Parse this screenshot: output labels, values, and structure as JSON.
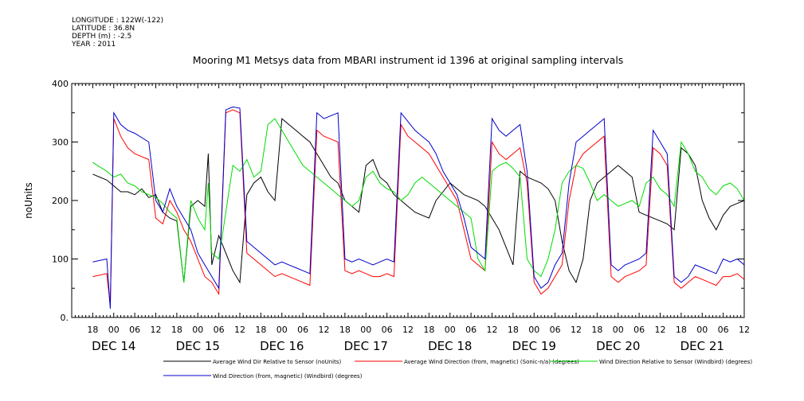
{
  "header": {
    "lines": [
      "LONGITUDE : 122W(-122)",
      "LATITUDE : 36.8N",
      "DEPTH (m) : -2.5",
      "YEAR : 2011"
    ]
  },
  "chart_data": {
    "type": "line",
    "title": "Mooring M1 Metsys data from MBARI instrument id 1396 at original sampling intervals",
    "ylabel": "noUnits",
    "xlabel": "",
    "ylim": [
      0,
      400
    ],
    "yticks": [
      0,
      100,
      200,
      300,
      400
    ],
    "ytick_labels": [
      "0.",
      "100",
      "200",
      "300",
      "400"
    ],
    "xlim": [
      "DEC 14 12:00",
      "DEC 22 00:00"
    ],
    "hour_tick_labels": [
      "18",
      "00",
      "06",
      "12",
      "18",
      "00",
      "06",
      "12",
      "18",
      "00",
      "06",
      "12",
      "18",
      "00",
      "06",
      "12",
      "18",
      "00",
      "06",
      "12",
      "18",
      "00",
      "06",
      "12",
      "18",
      "00",
      "06",
      "12",
      "18",
      "00",
      "06",
      "12"
    ],
    "day_labels": [
      "DEC 14",
      "DEC 15",
      "DEC 16",
      "DEC 17",
      "DEC 18",
      "DEC 19",
      "DEC 20",
      "DEC 21"
    ],
    "grid": false,
    "legend_placement": "bottom",
    "series": [
      {
        "name": "Average Wind Dir Relative to Sensor (noUnits)",
        "color": "#000000",
        "x_hours": [
          0,
          4,
          6,
          8,
          10,
          12,
          14,
          16,
          18,
          20,
          22,
          24,
          26,
          28,
          30,
          32,
          33,
          34,
          36,
          38,
          40,
          42,
          44,
          46,
          48,
          50,
          52,
          54,
          56,
          58,
          60,
          62,
          64,
          66,
          68,
          70,
          72,
          74,
          76,
          78,
          80,
          82,
          84,
          86,
          88,
          90,
          92,
          94,
          96,
          98,
          100,
          102,
          104,
          106,
          108,
          110,
          112,
          114,
          116,
          118,
          120,
          122,
          124,
          126,
          128,
          130,
          132,
          134,
          136,
          138,
          140,
          142,
          144,
          146,
          148,
          150,
          152,
          154,
          156,
          158,
          160,
          162,
          164,
          166,
          168,
          170,
          172,
          174,
          176,
          178,
          180,
          182,
          184,
          186,
          188
        ],
        "values": [
          245,
          235,
          225,
          215,
          215,
          210,
          220,
          205,
          210,
          180,
          170,
          165,
          60,
          190,
          200,
          190,
          280,
          90,
          140,
          110,
          80,
          60,
          210,
          230,
          240,
          215,
          200,
          340,
          330,
          320,
          310,
          300,
          280,
          260,
          240,
          230,
          200,
          190,
          180,
          260,
          270,
          240,
          230,
          210,
          200,
          190,
          180,
          175,
          170,
          200,
          215,
          230,
          220,
          210,
          205,
          200,
          190,
          170,
          150,
          120,
          90,
          250,
          240,
          235,
          230,
          220,
          200,
          130,
          80,
          60,
          100,
          200,
          230,
          240,
          250,
          260,
          250,
          240,
          180,
          175,
          170,
          165,
          160,
          150,
          290,
          280,
          260,
          200,
          170,
          150,
          175,
          190,
          195,
          200,
          185
        ]
      },
      {
        "name": "Average Wind Direction (from, magnetic) (Sonic-n/a) (degrees)",
        "color": "#ff0000",
        "x_hours": [
          0,
          4,
          5,
          6,
          8,
          10,
          12,
          16,
          18,
          20,
          22,
          24,
          26,
          28,
          30,
          32,
          34,
          36,
          38,
          40,
          42,
          44,
          46,
          48,
          50,
          52,
          54,
          56,
          58,
          60,
          62,
          64,
          66,
          68,
          70,
          72,
          74,
          76,
          78,
          80,
          82,
          84,
          86,
          88,
          90,
          92,
          94,
          96,
          98,
          100,
          102,
          104,
          106,
          108,
          110,
          112,
          114,
          116,
          118,
          120,
          122,
          124,
          126,
          128,
          130,
          132,
          134,
          136,
          138,
          140,
          142,
          144,
          146,
          148,
          150,
          152,
          154,
          156,
          158,
          160,
          162,
          164,
          166,
          168,
          170,
          172,
          174,
          176,
          178,
          180,
          182,
          184,
          186,
          188
        ],
        "values": [
          70,
          75,
          20,
          340,
          310,
          290,
          280,
          270,
          170,
          160,
          200,
          180,
          150,
          130,
          100,
          70,
          60,
          40,
          350,
          355,
          350,
          110,
          100,
          90,
          80,
          70,
          75,
          70,
          65,
          60,
          55,
          320,
          310,
          305,
          300,
          80,
          75,
          80,
          75,
          70,
          70,
          75,
          70,
          330,
          310,
          300,
          290,
          280,
          260,
          240,
          220,
          200,
          150,
          100,
          90,
          80,
          300,
          280,
          270,
          280,
          290,
          230,
          60,
          40,
          50,
          70,
          90,
          200,
          260,
          280,
          290,
          300,
          310,
          70,
          60,
          70,
          75,
          80,
          90,
          290,
          280,
          260,
          60,
          50,
          60,
          70,
          65,
          60,
          55,
          70,
          70,
          75,
          65,
          70
        ]
      },
      {
        "name": "Wind Direction Relative to Sensor (Windbird) (degrees)",
        "color": "#00dd00",
        "x_hours": [
          0,
          4,
          6,
          8,
          10,
          12,
          14,
          16,
          18,
          20,
          22,
          24,
          26,
          28,
          30,
          32,
          33,
          34,
          36,
          38,
          40,
          42,
          44,
          46,
          48,
          50,
          52,
          54,
          56,
          58,
          60,
          62,
          64,
          66,
          68,
          70,
          72,
          74,
          76,
          78,
          80,
          82,
          84,
          86,
          88,
          90,
          92,
          94,
          96,
          98,
          100,
          102,
          104,
          106,
          108,
          110,
          112,
          114,
          116,
          118,
          120,
          122,
          124,
          126,
          128,
          130,
          132,
          134,
          136,
          138,
          140,
          142,
          144,
          146,
          148,
          150,
          152,
          154,
          156,
          158,
          160,
          162,
          164,
          166,
          168,
          170,
          172,
          174,
          176,
          178,
          180,
          182,
          184,
          186,
          188
        ],
        "values": [
          265,
          250,
          240,
          245,
          230,
          225,
          215,
          210,
          205,
          195,
          180,
          170,
          60,
          200,
          170,
          150,
          230,
          110,
          100,
          180,
          260,
          250,
          270,
          240,
          250,
          330,
          340,
          320,
          300,
          280,
          260,
          250,
          240,
          230,
          220,
          210,
          200,
          190,
          200,
          240,
          250,
          230,
          220,
          215,
          200,
          210,
          230,
          240,
          230,
          220,
          210,
          200,
          190,
          180,
          170,
          100,
          80,
          250,
          260,
          265,
          255,
          240,
          100,
          80,
          70,
          100,
          150,
          230,
          250,
          260,
          255,
          230,
          200,
          210,
          200,
          190,
          195,
          200,
          190,
          230,
          240,
          220,
          210,
          190,
          300,
          280,
          250,
          240,
          220,
          210,
          225,
          230,
          220,
          200,
          190
        ]
      },
      {
        "name": "Wind Direction (from, magnetic) (Windbird) (degrees)",
        "color": "#0000cc",
        "x_hours": [
          0,
          4,
          5,
          6,
          8,
          10,
          12,
          16,
          18,
          20,
          22,
          24,
          26,
          28,
          30,
          32,
          34,
          36,
          38,
          40,
          42,
          44,
          46,
          48,
          50,
          52,
          54,
          56,
          58,
          60,
          62,
          64,
          66,
          68,
          70,
          72,
          74,
          76,
          78,
          80,
          82,
          84,
          86,
          88,
          90,
          92,
          94,
          96,
          98,
          100,
          102,
          104,
          106,
          108,
          110,
          112,
          114,
          116,
          118,
          120,
          122,
          124,
          126,
          128,
          130,
          132,
          134,
          136,
          138,
          140,
          142,
          144,
          146,
          148,
          150,
          152,
          154,
          156,
          158,
          160,
          162,
          164,
          166,
          168,
          170,
          172,
          174,
          176,
          178,
          180,
          182,
          184,
          186,
          188
        ],
        "values": [
          95,
          100,
          15,
          350,
          330,
          320,
          315,
          300,
          200,
          180,
          220,
          190,
          170,
          150,
          110,
          90,
          70,
          50,
          355,
          360,
          358,
          130,
          120,
          110,
          100,
          90,
          95,
          90,
          85,
          80,
          75,
          350,
          340,
          345,
          350,
          100,
          95,
          100,
          95,
          90,
          95,
          100,
          95,
          350,
          335,
          320,
          310,
          300,
          280,
          250,
          230,
          210,
          170,
          120,
          110,
          100,
          340,
          320,
          310,
          320,
          330,
          250,
          70,
          50,
          60,
          90,
          110,
          230,
          300,
          310,
          320,
          330,
          340,
          90,
          80,
          90,
          95,
          100,
          110,
          320,
          300,
          280,
          70,
          60,
          70,
          90,
          85,
          80,
          75,
          100,
          95,
          100,
          90,
          92
        ]
      }
    ]
  }
}
